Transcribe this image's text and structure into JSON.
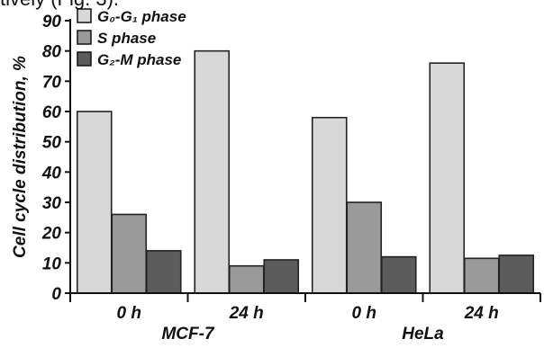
{
  "header_snippet": "tively (Fig. 3).",
  "chart_data": {
    "type": "bar",
    "title": "",
    "xlabel": "",
    "ylabel": "Cell cycle distribution, %",
    "ylim": [
      0,
      90
    ],
    "yticks": [
      0,
      10,
      20,
      30,
      40,
      50,
      60,
      70,
      80,
      90
    ],
    "categories": [
      "0 h",
      "24 h",
      "0 h",
      "24 h"
    ],
    "groups": [
      "MCF-7",
      "HeLa"
    ],
    "legend_position": "top-left",
    "grid": false,
    "series": [
      {
        "name": "G₀-G₁ phase",
        "color": "#d8d8d8",
        "values": [
          60,
          80,
          58,
          76
        ]
      },
      {
        "name": "S phase",
        "color": "#9a9a9a",
        "values": [
          26,
          9,
          30,
          11.5
        ]
      },
      {
        "name": "G₂-M phase",
        "color": "#5c5c5c",
        "values": [
          14,
          11,
          12,
          12.5
        ]
      }
    ]
  }
}
